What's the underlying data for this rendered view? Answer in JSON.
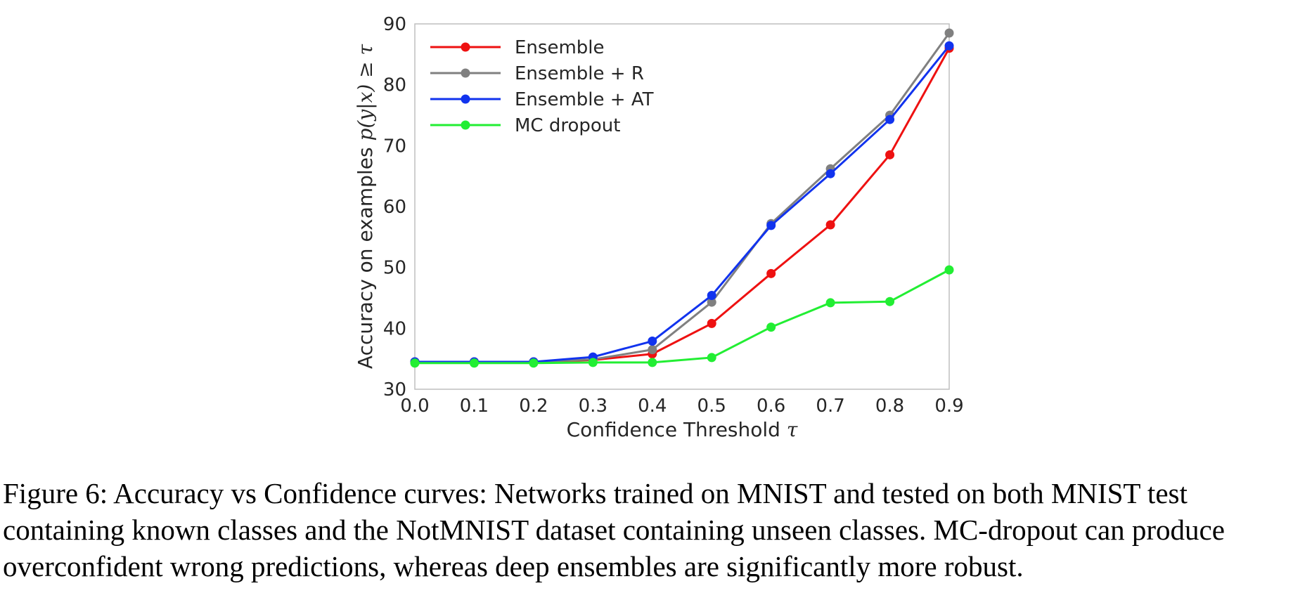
{
  "chart_data": {
    "type": "line",
    "title": "",
    "xlabel": "Confidence Threshold",
    "xlabel_symbol": "τ",
    "ylabel": "Accuracy on examples",
    "ylabel_symbol": "p(y|x) ≥ τ",
    "xlim": [
      0.0,
      0.9
    ],
    "ylim": [
      30,
      90
    ],
    "x_ticks": [
      "0.0",
      "0.1",
      "0.2",
      "0.3",
      "0.4",
      "0.5",
      "0.6",
      "0.7",
      "0.8",
      "0.9"
    ],
    "y_ticks": [
      "30",
      "40",
      "50",
      "60",
      "70",
      "80",
      "90"
    ],
    "grid": false,
    "legend_position": "top-left",
    "x": [
      0.0,
      0.1,
      0.2,
      0.3,
      0.4,
      0.5,
      0.6,
      0.7,
      0.8,
      0.9
    ],
    "series": [
      {
        "name": "Ensemble",
        "color": "#ee1111",
        "values": [
          34.5,
          34.5,
          34.5,
          34.8,
          35.8,
          40.8,
          49.0,
          57.0,
          68.5,
          86.0
        ]
      },
      {
        "name": "Ensemble + R",
        "color": "#808080",
        "values": [
          34.5,
          34.5,
          34.5,
          34.9,
          36.5,
          44.3,
          57.2,
          66.2,
          75.0,
          88.5
        ]
      },
      {
        "name": "Ensemble + AT",
        "color": "#1133ee",
        "values": [
          34.5,
          34.5,
          34.5,
          35.3,
          37.9,
          45.4,
          56.9,
          65.4,
          74.3,
          86.4
        ]
      },
      {
        "name": "MC dropout",
        "color": "#22ee33",
        "values": [
          34.3,
          34.3,
          34.3,
          34.4,
          34.4,
          35.2,
          40.2,
          44.2,
          44.4,
          49.6
        ]
      }
    ]
  },
  "caption": "Figure 6: Accuracy vs Confidence curves: Networks trained on MNIST and tested on both MNIST test containing known classes and the NotMNIST dataset containing unseen classes. MC-dropout can produce overconfident wrong predictions, whereas deep ensembles are significantly more robust."
}
